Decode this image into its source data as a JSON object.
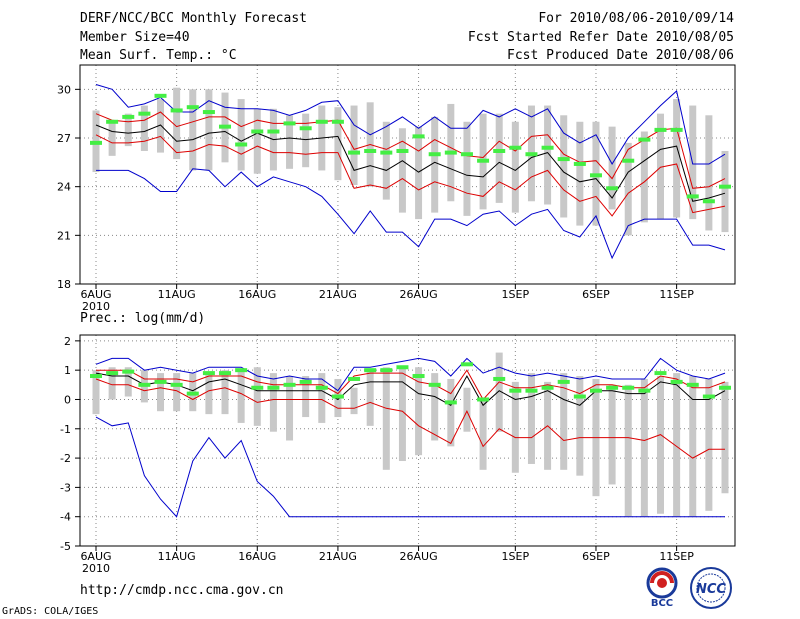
{
  "header": {
    "title": "DERF/NCC/BCC Monthly Forecast",
    "member_size": "Member Size=40",
    "variable": "Mean Surf. Temp.: °C",
    "forecast_period": "For 2010/08/06-2010/09/14",
    "started_refer": "Fcst Started Refer Date 2010/08/05",
    "produced": "Fcst Produced Date 2010/08/06"
  },
  "footer": {
    "url": "http://cmdp.ncc.cma.gov.cn",
    "grads": "GrADS: COLA/IGES",
    "logo_left_text": "BCC",
    "logo_right_text": "NCC"
  },
  "colors": {
    "box": "#c8c8c8",
    "median": "#44ee44",
    "mean": "#000000",
    "sd": "#dd0000",
    "extreme": "#0000cc"
  },
  "chart_data": [
    {
      "type": "line",
      "title": "",
      "ylabel": "Mean Surf. Temp.: °C",
      "ylim": [
        18,
        31.5
      ],
      "yticks": [
        18,
        21,
        24,
        27,
        30
      ],
      "xtick_labels": [
        "6AUG",
        "11AUG",
        "16AUG",
        "21AUG",
        "26AUG",
        "1SEP",
        "6SEP",
        "11SEP"
      ],
      "xtick_days": [
        1,
        6,
        11,
        16,
        21,
        27,
        32,
        37
      ],
      "x_sublabel": "2010",
      "days": 40,
      "series": [
        {
          "name": "box-high",
          "values": [
            28.7,
            28.0,
            28.5,
            29.0,
            29.4,
            30.1,
            30.0,
            30.0,
            29.8,
            29.4,
            28.8,
            28.8,
            28.4,
            28.5,
            29.0,
            28.9,
            29.0,
            29.2,
            28.0,
            27.6,
            27.7,
            28.3,
            29.1,
            28.0,
            28.5,
            28.5,
            28.0,
            29.0,
            29.0,
            28.4,
            28.0,
            28.0,
            27.7,
            26.7,
            27.4,
            28.5,
            29.4,
            29.0,
            28.4,
            26.2
          ]
        },
        {
          "name": "box-low",
          "values": [
            24.9,
            25.9,
            26.5,
            26.2,
            26.1,
            25.7,
            25.0,
            25.0,
            25.5,
            25.0,
            24.8,
            25.0,
            25.1,
            25.2,
            25.0,
            24.4,
            24.1,
            24.0,
            23.2,
            22.4,
            22.0,
            22.4,
            23.1,
            22.2,
            22.6,
            23.0,
            22.4,
            23.1,
            22.9,
            22.1,
            21.6,
            21.6,
            22.6,
            21.0,
            21.8,
            22.0,
            22.1,
            22.0,
            21.3,
            21.2
          ]
        },
        {
          "name": "median",
          "values": [
            26.7,
            28.0,
            28.3,
            28.5,
            29.6,
            28.7,
            28.9,
            28.6,
            27.7,
            26.6,
            27.4,
            27.4,
            27.9,
            27.6,
            28.0,
            28.0,
            26.1,
            26.2,
            26.1,
            26.2,
            27.1,
            26.0,
            26.1,
            26.0,
            25.6,
            26.2,
            26.4,
            26.0,
            26.4,
            25.7,
            25.4,
            24.7,
            23.9,
            25.6,
            26.9,
            27.5,
            27.5,
            23.4,
            23.1,
            24.0
          ]
        },
        {
          "name": "mean",
          "values": [
            27.8,
            27.4,
            27.3,
            27.4,
            27.8,
            26.8,
            26.9,
            27.3,
            27.4,
            26.8,
            27.3,
            26.9,
            27.0,
            26.9,
            27.0,
            27.1,
            25.0,
            25.3,
            25.0,
            25.6,
            24.9,
            25.5,
            25.1,
            24.7,
            24.6,
            25.5,
            25.0,
            25.8,
            26.1,
            24.9,
            24.3,
            24.5,
            23.3,
            24.9,
            25.6,
            26.3,
            26.5,
            23.1,
            23.3,
            23.6
          ]
        },
        {
          "name": "plus-sd",
          "values": [
            28.5,
            28.1,
            28.0,
            28.1,
            28.6,
            27.7,
            28.0,
            28.3,
            28.3,
            27.7,
            28.1,
            27.9,
            27.9,
            27.9,
            28.0,
            28.1,
            26.3,
            26.6,
            26.3,
            26.8,
            26.2,
            26.9,
            26.4,
            25.9,
            25.8,
            26.8,
            26.2,
            27.1,
            27.2,
            26.0,
            25.5,
            25.6,
            24.5,
            26.3,
            26.9,
            27.5,
            27.6,
            23.9,
            24.0,
            24.5
          ]
        },
        {
          "name": "minus-sd",
          "values": [
            27.2,
            26.7,
            26.7,
            26.8,
            27.1,
            26.1,
            26.2,
            26.6,
            26.5,
            26.0,
            26.5,
            26.1,
            26.1,
            26.0,
            26.1,
            26.1,
            23.9,
            24.1,
            23.9,
            24.5,
            23.8,
            24.3,
            24.0,
            23.6,
            23.4,
            24.3,
            23.8,
            24.6,
            25.0,
            23.8,
            23.1,
            23.4,
            22.2,
            23.6,
            24.3,
            25.2,
            25.4,
            22.4,
            22.6,
            22.8
          ]
        },
        {
          "name": "max",
          "values": [
            30.3,
            30.0,
            28.9,
            29.1,
            29.5,
            28.6,
            28.6,
            29.3,
            28.9,
            28.8,
            28.8,
            28.7,
            28.4,
            28.7,
            29.2,
            29.3,
            27.8,
            27.2,
            27.7,
            28.3,
            27.6,
            28.3,
            27.6,
            27.6,
            28.7,
            28.3,
            28.8,
            28.3,
            28.8,
            27.3,
            26.7,
            27.2,
            25.4,
            27.0,
            28.0,
            29.0,
            29.9,
            25.4,
            25.4,
            26.0
          ]
        },
        {
          "name": "min",
          "values": [
            25.0,
            25.0,
            25.0,
            24.5,
            23.7,
            23.7,
            25.1,
            25.0,
            24.0,
            24.9,
            24.0,
            24.6,
            24.3,
            24.0,
            23.4,
            22.3,
            21.1,
            22.5,
            21.2,
            21.2,
            20.3,
            22.0,
            22.0,
            21.6,
            22.3,
            22.5,
            21.6,
            22.3,
            22.6,
            21.3,
            20.9,
            22.2,
            19.6,
            21.6,
            22.0,
            22.0,
            22.0,
            20.4,
            20.4,
            20.1
          ]
        }
      ]
    },
    {
      "type": "line",
      "title": "",
      "ylabel": "Prec.: log(mm/d)",
      "ylim": [
        -5,
        2.2
      ],
      "yticks": [
        -5,
        -4,
        -3,
        -2,
        -1,
        0,
        1,
        2
      ],
      "xtick_labels": [
        "6AUG",
        "11AUG",
        "16AUG",
        "21AUG",
        "26AUG",
        "1SEP",
        "6SEP",
        "11SEP"
      ],
      "xtick_days": [
        1,
        6,
        11,
        16,
        21,
        27,
        32,
        37
      ],
      "x_sublabel": "2010",
      "days": 40,
      "series": [
        {
          "name": "box-high",
          "values": [
            1.0,
            1.1,
            1.1,
            1.0,
            0.9,
            0.9,
            0.9,
            0.9,
            1.0,
            1.0,
            1.1,
            0.9,
            0.8,
            0.8,
            0.9,
            0.7,
            0.4,
            1.0,
            1.1,
            1.1,
            1.1,
            0.9,
            0.7,
            0.4,
            0.0,
            1.6,
            0.6,
            0.9,
            0.6,
            0.9,
            0.8,
            0.7,
            0.5,
            0.5,
            0.7,
            0.8,
            0.9,
            0.8,
            0.7,
            0.6
          ]
        },
        {
          "name": "box-low",
          "values": [
            -0.5,
            0.0,
            0.1,
            -0.1,
            -0.4,
            -0.4,
            -0.4,
            -0.5,
            -0.5,
            -0.8,
            -0.9,
            -1.1,
            -1.4,
            -0.6,
            -0.8,
            -0.6,
            -0.5,
            -0.9,
            -2.4,
            -2.1,
            -1.9,
            -1.4,
            -1.6,
            -1.1,
            -2.4,
            -1.1,
            -2.5,
            -2.2,
            -2.4,
            -2.4,
            -2.6,
            -3.3,
            -2.9,
            -4.0,
            -4.0,
            -3.9,
            -4.0,
            -4.0,
            -3.8,
            -3.2
          ]
        },
        {
          "name": "median",
          "values": [
            0.8,
            0.9,
            0.95,
            0.5,
            0.6,
            0.5,
            0.2,
            0.9,
            0.9,
            1.0,
            0.4,
            0.4,
            0.5,
            0.6,
            0.4,
            0.1,
            0.7,
            1.0,
            1.0,
            1.1,
            0.8,
            0.5,
            -0.1,
            1.2,
            0.0,
            0.7,
            0.3,
            0.3,
            0.4,
            0.6,
            0.1,
            0.3,
            0.4,
            0.4,
            0.3,
            0.9,
            0.6,
            0.5,
            0.1,
            0.4
          ]
        },
        {
          "name": "mean",
          "values": [
            0.9,
            0.8,
            0.8,
            0.5,
            0.6,
            0.5,
            0.3,
            0.6,
            0.7,
            0.5,
            0.3,
            0.3,
            0.3,
            0.3,
            0.3,
            0.0,
            0.5,
            0.6,
            0.6,
            0.6,
            0.2,
            0.1,
            -0.2,
            0.8,
            -0.2,
            0.3,
            0.0,
            0.1,
            0.3,
            0.0,
            -0.2,
            0.3,
            0.3,
            0.2,
            0.2,
            0.6,
            0.5,
            0.0,
            0.0,
            0.3
          ]
        },
        {
          "name": "plus-sd",
          "values": [
            1.0,
            1.0,
            1.0,
            0.7,
            0.7,
            0.7,
            0.6,
            0.8,
            0.8,
            0.8,
            0.6,
            0.5,
            0.5,
            0.5,
            0.5,
            0.2,
            0.8,
            0.9,
            0.9,
            0.9,
            0.6,
            0.5,
            0.2,
            1.0,
            0.0,
            0.6,
            0.4,
            0.4,
            0.5,
            0.4,
            0.2,
            0.5,
            0.5,
            0.4,
            0.4,
            0.8,
            0.7,
            0.4,
            0.4,
            0.6
          ]
        },
        {
          "name": "minus-sd",
          "values": [
            0.7,
            0.5,
            0.5,
            0.3,
            0.4,
            0.3,
            0.0,
            0.3,
            0.4,
            0.2,
            -0.1,
            0.0,
            0.0,
            0.0,
            0.0,
            -0.3,
            -0.3,
            -0.1,
            -0.3,
            -0.4,
            -0.9,
            -1.2,
            -1.5,
            -0.4,
            -1.6,
            -1.0,
            -1.3,
            -1.3,
            -0.9,
            -1.4,
            -1.3,
            -1.3,
            -1.3,
            -1.3,
            -1.4,
            -1.2,
            -1.6,
            -2.0,
            -1.7,
            -1.7
          ]
        },
        {
          "name": "max",
          "values": [
            1.2,
            1.4,
            1.4,
            1.0,
            1.1,
            1.0,
            0.9,
            1.1,
            1.1,
            1.1,
            0.8,
            0.7,
            0.8,
            0.7,
            0.7,
            0.3,
            1.1,
            1.1,
            1.2,
            1.3,
            1.4,
            1.3,
            0.8,
            1.4,
            0.9,
            1.1,
            0.9,
            0.8,
            0.9,
            0.8,
            0.7,
            0.8,
            0.7,
            0.7,
            0.7,
            1.4,
            1.0,
            0.8,
            0.7,
            0.9
          ]
        },
        {
          "name": "min",
          "values": [
            -0.6,
            -0.9,
            -0.8,
            -2.6,
            -3.4,
            -4.0,
            -2.1,
            -1.3,
            -2.0,
            -1.4,
            -2.8,
            -3.3,
            -4.0,
            -4.0,
            -4.0,
            -4.0,
            -4.0,
            -4.0,
            -4.0,
            -4.0,
            -4.0,
            -4.0,
            -4.0,
            -4.0,
            -4.0,
            -4.0,
            -4.0,
            -4.0,
            -4.0,
            -4.0,
            -4.0,
            -4.0,
            -4.0,
            -4.0,
            -4.0,
            -4.0,
            -4.0,
            -4.0,
            -4.0,
            -4.0
          ]
        }
      ]
    }
  ]
}
